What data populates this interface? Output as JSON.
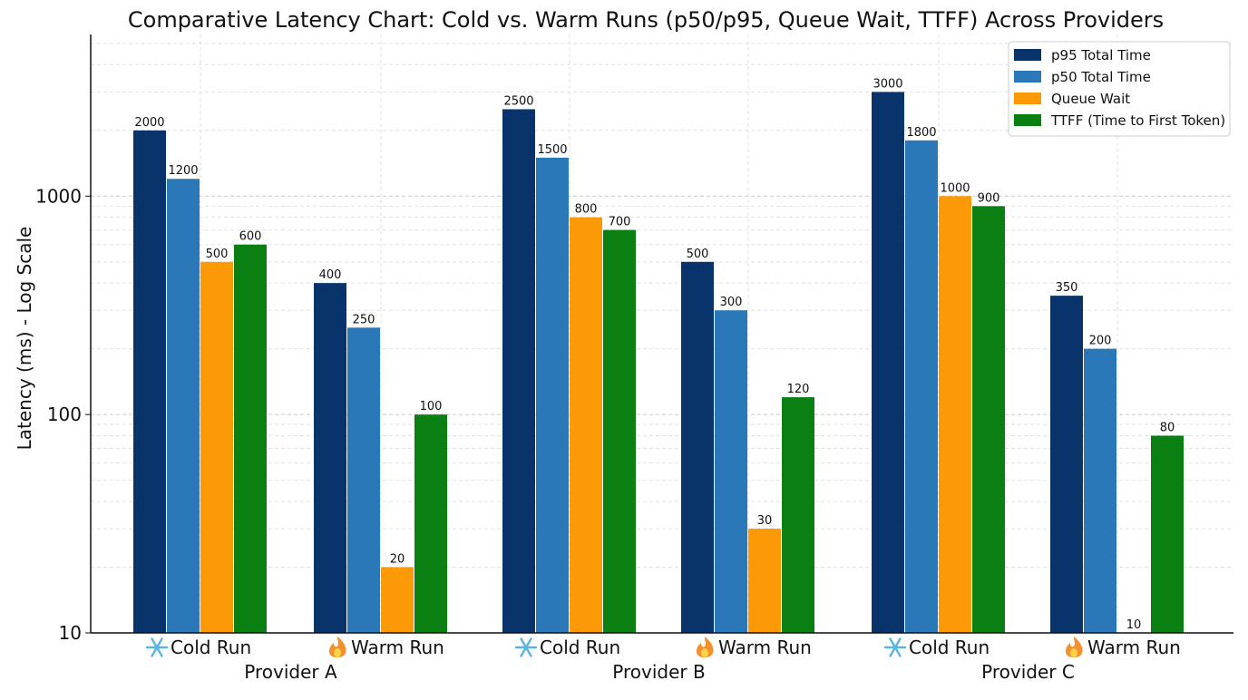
{
  "chart_data": {
    "type": "bar",
    "title": "Comparative Latency Chart: Cold vs. Warm Runs (p50/p95, Queue Wait, TTFF) Across Providers",
    "xlabel": "",
    "ylabel": "Latency (ms) - Log Scale",
    "yscale": "log",
    "ylim": [
      10,
      5500
    ],
    "yticks": [
      10,
      100,
      1000
    ],
    "ytick_labels": [
      "10",
      "100",
      "1000"
    ],
    "grid": true,
    "legend_position": "top-right",
    "categories": [
      {
        "label": "Cold Run",
        "icon": "snowflake-icon",
        "provider": "Provider A"
      },
      {
        "label": "Warm Run",
        "icon": "fire-icon",
        "provider": "Provider A"
      },
      {
        "label": "Cold Run",
        "icon": "snowflake-icon",
        "provider": "Provider B"
      },
      {
        "label": "Warm Run",
        "icon": "fire-icon",
        "provider": "Provider B"
      },
      {
        "label": "Cold Run",
        "icon": "snowflake-icon",
        "provider": "Provider C"
      },
      {
        "label": "Warm Run",
        "icon": "fire-icon",
        "provider": "Provider C"
      }
    ],
    "providers": [
      "Provider A",
      "Provider B",
      "Provider C"
    ],
    "series": [
      {
        "name": "p95 Total Time",
        "color": "#08336b",
        "values": [
          2000,
          400,
          2500,
          500,
          3000,
          350
        ]
      },
      {
        "name": "p50 Total Time",
        "color": "#2a78b8",
        "values": [
          1200,
          250,
          1500,
          300,
          1800,
          200
        ]
      },
      {
        "name": "Queue Wait",
        "color": "#fb9a06",
        "values": [
          500,
          20,
          800,
          30,
          1000,
          10
        ]
      },
      {
        "name": "TTFF (Time to First Token)",
        "color": "#0a7f12",
        "values": [
          600,
          100,
          700,
          120,
          900,
          80
        ]
      }
    ]
  }
}
